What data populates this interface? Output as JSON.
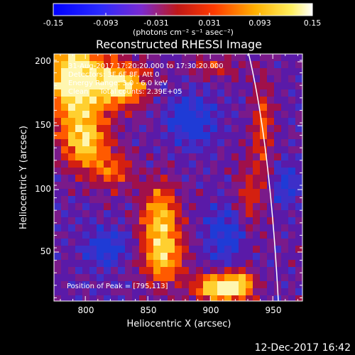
{
  "colorbar": {
    "ticks": [
      "-0.15",
      "-0.093",
      "-0.031",
      "0.031",
      "0.093",
      "0.15"
    ],
    "units": "(photons cm⁻² s⁻¹ asec⁻²)"
  },
  "title": "Reconstructed RHESSI Image",
  "info": {
    "line1": "31-Aug-2017 17:20:20.000 to 17:30:20.000",
    "line2": "Detectors: 3F 6F 8F, Att 0",
    "line3": "Energy Range: 3.0 - 6.0 keV",
    "line4": "Clean     Total counts: 2.39E+05"
  },
  "peak_text": "Position of Peak = [795,113]",
  "axes": {
    "xlabel": "Heliocentric X (arcsec)",
    "ylabel": "Heliocentric Y (arcsec)",
    "xticks": [
      "800",
      "850",
      "900",
      "950"
    ],
    "yticks": [
      "50",
      "100",
      "150",
      "200"
    ]
  },
  "footer_date": "12-Dec-2017 16:42",
  "colors": {
    "bg": "#000000",
    "limb": "#ffffff",
    "purple_bg": "#5a1aa8",
    "blue": "#1d3bd6",
    "hot": "#ffb020",
    "white_hot": "#fff6c8"
  }
}
